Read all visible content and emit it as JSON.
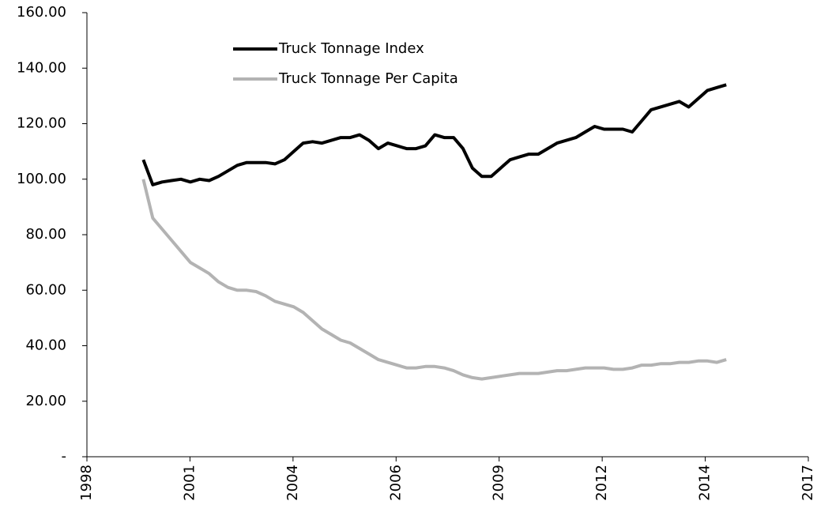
{
  "chart_data": {
    "type": "line",
    "x": [
      2000,
      2000.25,
      2000.5,
      2000.75,
      2001,
      2001.25,
      2001.5,
      2001.75,
      2002,
      2002.25,
      2002.5,
      2002.75,
      2003,
      2003.25,
      2003.5,
      2003.75,
      2004,
      2004.25,
      2004.5,
      2004.75,
      2005,
      2005.25,
      2005.5,
      2005.75,
      2006,
      2006.25,
      2006.5,
      2006.75,
      2007,
      2007.25,
      2007.5,
      2007.75,
      2008,
      2008.25,
      2008.5,
      2008.75,
      2009,
      2009.25,
      2009.5,
      2009.75,
      2010,
      2010.25,
      2010.5,
      2010.75,
      2011,
      2011.25,
      2011.5,
      2011.75,
      2012,
      2012.25,
      2012.5,
      2012.75,
      2013,
      2013.25,
      2013.5,
      2013.75,
      2014,
      2014.25,
      2014.5,
      2014.75,
      2015,
      2015.25,
      2015.5
    ],
    "series": [
      {
        "name": "Truck Tonnage Index",
        "color": "#000000",
        "values": [
          107,
          98,
          99,
          99.5,
          100,
          99,
          100,
          99.5,
          101,
          103,
          105,
          106,
          106,
          106,
          105.5,
          107,
          110,
          113,
          113.5,
          113,
          114,
          115,
          115,
          116,
          114,
          111,
          113,
          112,
          111,
          111,
          112,
          116,
          115,
          115,
          111,
          104,
          101,
          101,
          104,
          107,
          108,
          109,
          109,
          111,
          113,
          114,
          115,
          117,
          119,
          118,
          118,
          118,
          117,
          121,
          125,
          126,
          127,
          128,
          126,
          129,
          132,
          133,
          134
        ]
      },
      {
        "name": "Truck Tonnage Per Capita",
        "color": "#b3b3b3",
        "values": [
          100,
          86,
          82,
          78,
          74,
          70,
          68,
          66,
          63,
          61,
          60,
          60,
          59.5,
          58,
          56,
          55,
          54,
          52,
          49,
          46,
          44,
          42,
          41,
          39,
          37,
          35,
          34,
          33,
          32,
          32,
          32.5,
          32.5,
          32,
          31,
          29.5,
          28.5,
          28,
          28.5,
          29,
          29.5,
          30,
          30,
          30,
          30.5,
          31,
          31,
          31.5,
          32,
          32,
          32,
          31.5,
          31.5,
          32,
          33,
          33,
          33.5,
          33.5,
          34,
          34,
          34.5,
          34.5,
          34,
          35
        ]
      }
    ],
    "xlim": [
      1998.5,
      2017.68
    ],
    "xticks": [
      {
        "value": 1998.5,
        "label": "1998"
      },
      {
        "value": 2001.24,
        "label": "2001"
      },
      {
        "value": 2003.98,
        "label": "2004"
      },
      {
        "value": 2006.72,
        "label": "2006"
      },
      {
        "value": 2009.46,
        "label": "2009"
      },
      {
        "value": 2012.2,
        "label": "2012"
      },
      {
        "value": 2014.94,
        "label": "2014"
      },
      {
        "value": 2017.68,
        "label": "2017"
      }
    ],
    "ylim": [
      0,
      160
    ],
    "yticks": [
      {
        "value": 0,
        "label": "-"
      },
      {
        "value": 20,
        "label": "20.00"
      },
      {
        "value": 40,
        "label": "40.00"
      },
      {
        "value": 60,
        "label": "60.00"
      },
      {
        "value": 80,
        "label": "80.00"
      },
      {
        "value": 100,
        "label": "100.00"
      },
      {
        "value": 120,
        "label": "120.00"
      },
      {
        "value": 140,
        "label": "140.00"
      },
      {
        "value": 160,
        "label": "160.00"
      }
    ],
    "grid": false,
    "legend": "upper-left"
  }
}
